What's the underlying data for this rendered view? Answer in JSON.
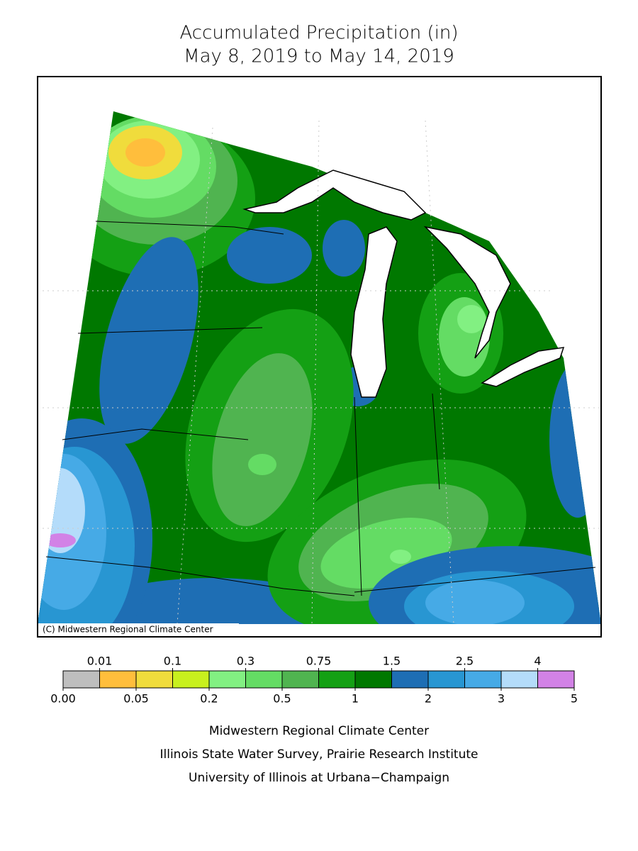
{
  "title": {
    "line1": "Accumulated Precipitation (in)",
    "line2": "May 8, 2019 to May 14, 2019"
  },
  "credit": "(C) Midwestern Regional Climate Center",
  "legend": {
    "colors": [
      "#bebebe",
      "#ffbe3c",
      "#f0dc3c",
      "#c8f01e",
      "#82f082",
      "#64dc64",
      "#50b450",
      "#14a014",
      "#007800",
      "#1e6eb4",
      "#2896d2",
      "#46aae6",
      "#b4dcfa",
      "#d282e6"
    ],
    "ticks": [
      {
        "value": 0,
        "label": "0.00"
      },
      0.01,
      0.05,
      0.1,
      0.2,
      0.3,
      0.5,
      0.75,
      1,
      1.5,
      2,
      2.5,
      3,
      4,
      5
    ]
  },
  "footer": [
    "Midwestern Regional Climate Center",
    "Illinois State Water Survey, Prairie Research Institute",
    "University of Illinois at Urbana−Champaign"
  ]
}
